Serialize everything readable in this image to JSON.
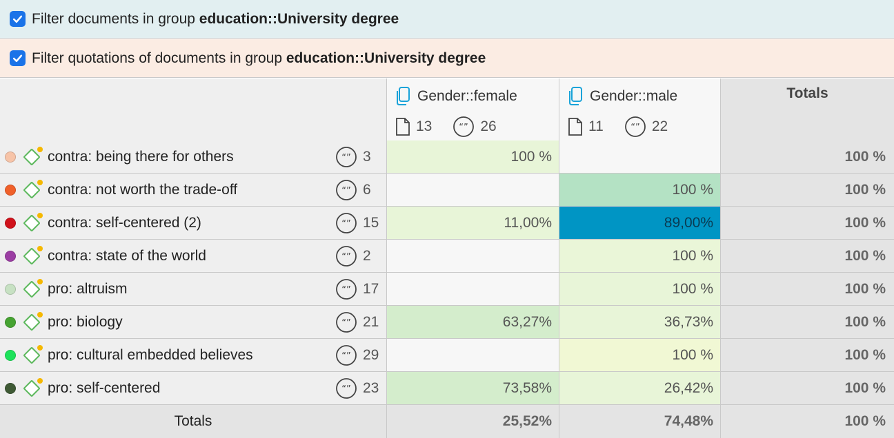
{
  "filters": {
    "documents": {
      "prefix": "Filter documents in group ",
      "group": "education::University degree",
      "checked": true
    },
    "quotations": {
      "prefix": "Filter quotations of documents in group ",
      "group": "education::University degree",
      "checked": true
    }
  },
  "columns": {
    "female": {
      "title": "Gender::female",
      "doc_count": "13",
      "quote_count": "26"
    },
    "male": {
      "title": "Gender::male",
      "doc_count": "11",
      "quote_count": "22"
    },
    "totals": {
      "title": "Totals"
    }
  },
  "rows": [
    {
      "color": "#f7c4a8",
      "name": "contra: being there for others",
      "count": "3",
      "female": "100 %",
      "male": "",
      "total": "100 %",
      "female_bg": "#e8f5d8",
      "male_bg": "#f7f7f7"
    },
    {
      "color": "#f0602a",
      "name": "contra: not worth the trade-off",
      "count": "6",
      "female": "",
      "male": "100 %",
      "total": "100 %",
      "female_bg": "#f7f7f7",
      "male_bg": "#b4e2c4"
    },
    {
      "color": "#d0121b",
      "name": "contra: self-centered (2)",
      "count": "15",
      "female": "11,00%",
      "male": "89,00%",
      "total": "100 %",
      "female_bg": "#e8f5d8",
      "male_bg": "#0095c4"
    },
    {
      "color": "#9b3ea3",
      "name": "contra: state of the world",
      "count": "2",
      "female": "",
      "male": "100 %",
      "total": "100 %",
      "female_bg": "#f7f7f7",
      "male_bg": "#eaf6d8"
    },
    {
      "color": "#c7e1c3",
      "name": "pro: altruism",
      "count": "17",
      "female": "",
      "male": "100 %",
      "total": "100 %",
      "female_bg": "#f7f7f7",
      "male_bg": "#e8f5d8"
    },
    {
      "color": "#46a332",
      "name": "pro: biology",
      "count": "21",
      "female": "63,27%",
      "male": "36,73%",
      "total": "100 %",
      "female_bg": "#d4edcc",
      "male_bg": "#e8f5d8"
    },
    {
      "color": "#1de25a",
      "name": "pro: cultural embedded believes",
      "count": "29",
      "female": "",
      "male": "100 %",
      "total": "100 %",
      "female_bg": "#f7f7f7",
      "male_bg": "#f1f8d4"
    },
    {
      "color": "#3f5a35",
      "name": "pro: self-centered",
      "count": "23",
      "female": "73,58%",
      "male": "26,42%",
      "total": "100 %",
      "female_bg": "#d4edcc",
      "male_bg": "#e8f5d8"
    }
  ],
  "totals_row": {
    "label": "Totals",
    "female": "25,52%",
    "male": "74,48%",
    "total": "100 %"
  },
  "colors": {
    "checkbox": "#1a73e8",
    "code_icon": "#5cb85c",
    "badge": "#f5b800",
    "doc_filter_bg": "#e2eff1",
    "quote_filter_bg": "#fbece3"
  }
}
